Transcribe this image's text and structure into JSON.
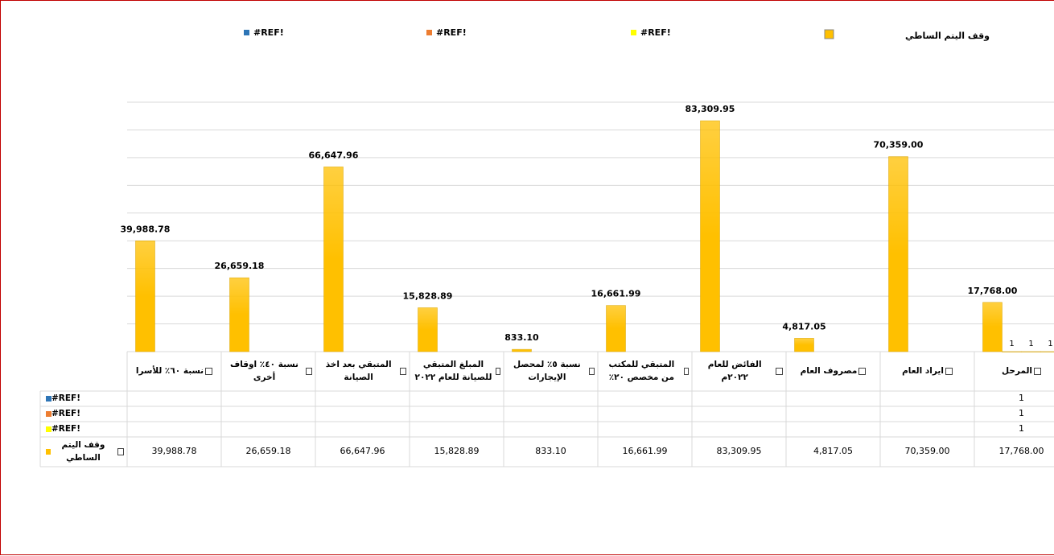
{
  "chart_data": {
    "type": "bar",
    "categories": [
      "المرحل",
      "ايراد العام",
      "مصروف العام",
      "الفائض للعام ٢٠٢٢م",
      "المتبقي للمكتب من مخصص ٢٠٪",
      "نسبة ٥٪ لمحصل الإيجارات",
      "المبلغ المتبقي للصيانة للعام ٢٠٢٢",
      "المتبقي بعد اخذ الصيانة",
      "نسبة ٤٠٪ اوقاف أخرى",
      "نسبة ٦٠٪ للأسرا"
    ],
    "series": [
      {
        "name": "#REF!",
        "color": "#2e75b6",
        "values": [
          1,
          null,
          null,
          null,
          null,
          null,
          null,
          null,
          null,
          null
        ]
      },
      {
        "name": "#REF!",
        "color": "#ed7d31",
        "values": [
          1,
          null,
          null,
          null,
          null,
          null,
          null,
          null,
          null,
          null
        ]
      },
      {
        "name": "#REF!",
        "color": "#ffff00",
        "values": [
          1,
          null,
          null,
          null,
          null,
          null,
          null,
          null,
          null,
          null
        ]
      },
      {
        "name": "وقف اليتم الساطي",
        "color": "#ffc000",
        "values": [
          17768,
          70359,
          4817.05,
          83309.95,
          16661.99,
          833.1,
          15828.89,
          66647.96,
          26659.18,
          39988.78
        ],
        "value_labels": [
          "17,768.00",
          "70,359.00",
          "4,817.05",
          "83,309.95",
          "16,661.99",
          "833.10",
          "15,828.89",
          "66,647.96",
          "26,659.18",
          "39,988.78"
        ]
      }
    ],
    "ylim": [
      0,
      90000
    ],
    "yticks": [
      0,
      10000,
      20000,
      30000,
      40000,
      50000,
      60000,
      70000,
      80000,
      90000
    ],
    "grid": true,
    "legend": "top",
    "data_table": true
  }
}
